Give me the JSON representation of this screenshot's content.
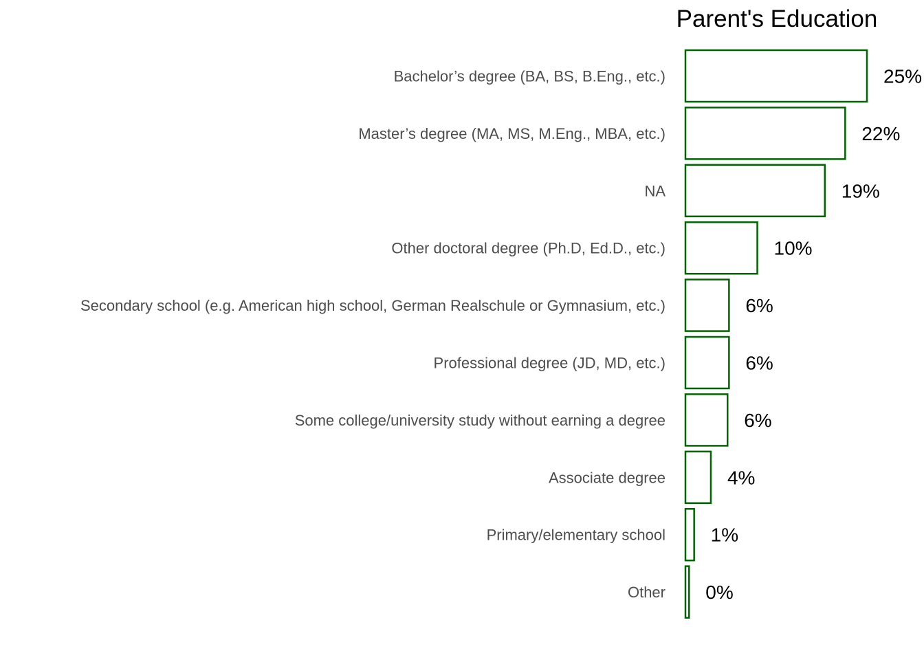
{
  "chart_data": {
    "type": "bar",
    "orientation": "horizontal",
    "title": "Parent's Education",
    "xlabel": "",
    "ylabel": "",
    "xlim": [
      0,
      25
    ],
    "grid": false,
    "legend": "none",
    "bar_outline_color": "#006400",
    "bar_fill_color": "#ffffff",
    "categories": [
      "Bachelor’s degree (BA, BS, B.Eng., etc.)",
      "Master’s degree (MA, MS, M.Eng., MBA, etc.)",
      "NA",
      "Other doctoral degree (Ph.D, Ed.D., etc.)",
      "Secondary school (e.g. American high school, German Realschule or Gymnasium, etc.)",
      "Professional degree (JD, MD, etc.)",
      "Some college/university study without earning a degree",
      "Associate degree",
      "Primary/elementary school",
      "Other"
    ],
    "values": [
      25.0,
      22.0,
      19.2,
      9.9,
      6.0,
      6.0,
      5.8,
      3.5,
      1.2,
      0.5
    ],
    "value_labels": [
      "25%",
      "22%",
      "19%",
      "10%",
      "6%",
      "6%",
      "6%",
      "4%",
      "1%",
      "0%"
    ]
  }
}
